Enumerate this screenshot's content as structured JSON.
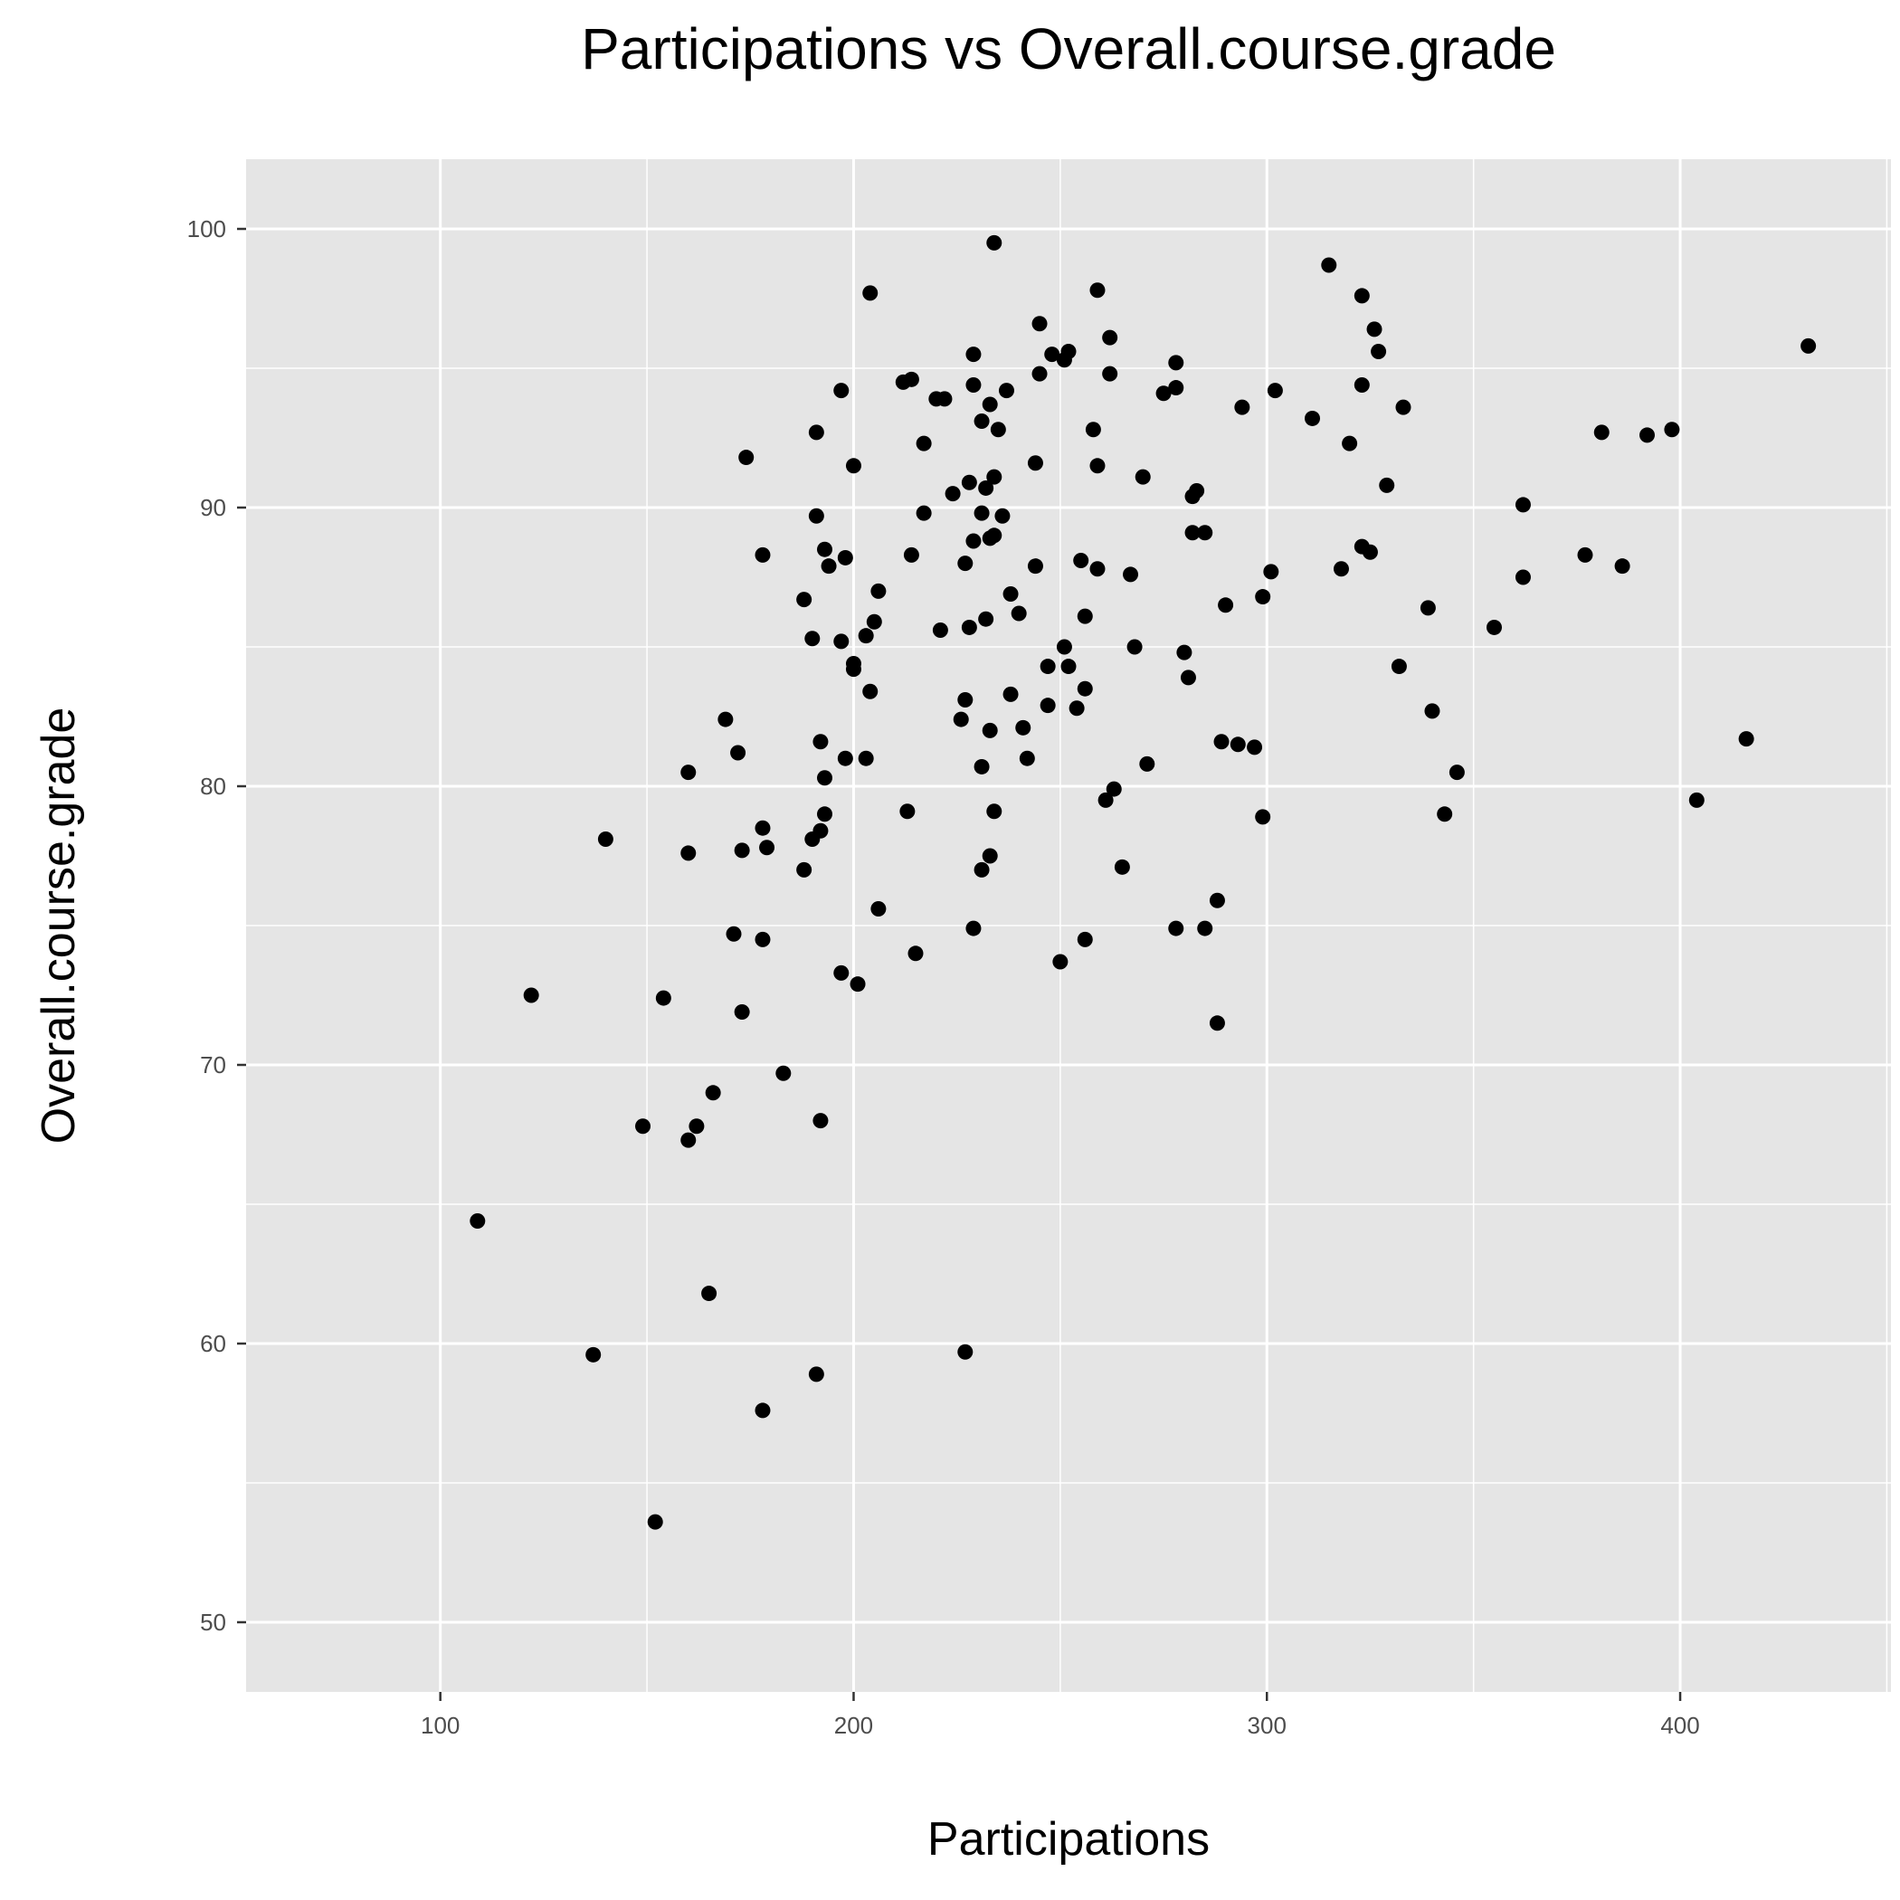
{
  "chart_data": {
    "type": "scatter",
    "title": "Participations vs Overall.course.grade",
    "xlabel": "Participations",
    "ylabel": "Overall.course.grade",
    "xlim": [
      53,
      451
    ],
    "ylim": [
      47.5,
      102.5
    ],
    "x_ticks": [
      100,
      200,
      300,
      400
    ],
    "y_ticks": [
      50,
      60,
      70,
      80,
      90,
      100
    ],
    "x_tick_labels": [
      "100",
      "200",
      "300",
      "400"
    ],
    "y_tick_labels": [
      "50",
      "60",
      "70",
      "80",
      "90",
      "100"
    ],
    "grid": true,
    "colors": {
      "panel": "#e5e5e5",
      "grid": "#ffffff",
      "point": "#000000",
      "tick_mark": "#333333"
    },
    "points": [
      [
        109,
        64.4
      ],
      [
        122,
        72.5
      ],
      [
        137,
        59.6
      ],
      [
        140,
        78.1
      ],
      [
        149,
        67.8
      ],
      [
        152,
        53.6
      ],
      [
        154,
        72.4
      ],
      [
        160,
        67.3
      ],
      [
        160,
        77.6
      ],
      [
        160,
        80.5
      ],
      [
        162,
        67.8
      ],
      [
        165,
        61.8
      ],
      [
        166,
        69.0
      ],
      [
        169,
        82.4
      ],
      [
        171,
        74.7
      ],
      [
        172,
        81.2
      ],
      [
        173,
        71.9
      ],
      [
        173,
        77.7
      ],
      [
        174,
        91.8
      ],
      [
        178,
        57.6
      ],
      [
        178,
        74.5
      ],
      [
        178,
        78.5
      ],
      [
        178,
        88.3
      ],
      [
        179,
        77.8
      ],
      [
        183,
        69.7
      ],
      [
        188,
        77.0
      ],
      [
        188,
        86.7
      ],
      [
        190,
        78.1
      ],
      [
        190,
        85.3
      ],
      [
        191,
        58.9
      ],
      [
        191,
        89.7
      ],
      [
        191,
        92.7
      ],
      [
        192,
        68.0
      ],
      [
        192,
        78.4
      ],
      [
        192,
        81.6
      ],
      [
        193,
        79.0
      ],
      [
        193,
        80.3
      ],
      [
        193,
        88.5
      ],
      [
        194,
        87.9
      ],
      [
        197,
        73.3
      ],
      [
        197,
        85.2
      ],
      [
        197,
        94.2
      ],
      [
        198,
        81.0
      ],
      [
        198,
        88.2
      ],
      [
        200,
        84.2
      ],
      [
        200,
        84.4
      ],
      [
        200,
        91.5
      ],
      [
        201,
        72.9
      ],
      [
        203,
        81.0
      ],
      [
        203,
        85.4
      ],
      [
        204,
        83.4
      ],
      [
        204,
        97.7
      ],
      [
        205,
        85.9
      ],
      [
        206,
        75.6
      ],
      [
        206,
        87.0
      ],
      [
        212,
        94.5
      ],
      [
        213,
        79.1
      ],
      [
        214,
        88.3
      ],
      [
        214,
        94.6
      ],
      [
        215,
        74.0
      ],
      [
        217,
        89.8
      ],
      [
        217,
        92.3
      ],
      [
        220,
        93.9
      ],
      [
        221,
        85.6
      ],
      [
        222,
        93.9
      ],
      [
        224,
        90.5
      ],
      [
        226,
        82.4
      ],
      [
        227,
        59.7
      ],
      [
        227,
        83.1
      ],
      [
        227,
        88.0
      ],
      [
        228,
        85.7
      ],
      [
        228,
        90.9
      ],
      [
        229,
        74.9
      ],
      [
        229,
        88.8
      ],
      [
        229,
        94.4
      ],
      [
        229,
        95.5
      ],
      [
        231,
        77.0
      ],
      [
        231,
        80.7
      ],
      [
        231,
        89.8
      ],
      [
        231,
        93.1
      ],
      [
        232,
        86.0
      ],
      [
        232,
        90.7
      ],
      [
        233,
        77.5
      ],
      [
        233,
        82.0
      ],
      [
        233,
        88.9
      ],
      [
        233,
        93.7
      ],
      [
        234,
        79.1
      ],
      [
        234,
        89.0
      ],
      [
        234,
        91.1
      ],
      [
        234,
        99.5
      ],
      [
        235,
        92.8
      ],
      [
        236,
        89.7
      ],
      [
        237,
        94.2
      ],
      [
        238,
        83.3
      ],
      [
        238,
        86.9
      ],
      [
        240,
        86.2
      ],
      [
        241,
        82.1
      ],
      [
        242,
        81.0
      ],
      [
        244,
        87.9
      ],
      [
        244,
        91.6
      ],
      [
        245,
        94.8
      ],
      [
        245,
        96.6
      ],
      [
        247,
        82.9
      ],
      [
        247,
        84.3
      ],
      [
        248,
        95.5
      ],
      [
        250,
        73.7
      ],
      [
        251,
        85.0
      ],
      [
        251,
        95.3
      ],
      [
        252,
        84.3
      ],
      [
        252,
        95.6
      ],
      [
        254,
        82.8
      ],
      [
        255,
        88.1
      ],
      [
        256,
        74.5
      ],
      [
        256,
        83.5
      ],
      [
        256,
        86.1
      ],
      [
        258,
        92.8
      ],
      [
        259,
        87.8
      ],
      [
        259,
        91.5
      ],
      [
        259,
        97.8
      ],
      [
        261,
        79.5
      ],
      [
        262,
        94.8
      ],
      [
        262,
        96.1
      ],
      [
        263,
        79.9
      ],
      [
        265,
        77.1
      ],
      [
        267,
        87.6
      ],
      [
        268,
        85.0
      ],
      [
        270,
        91.1
      ],
      [
        271,
        80.8
      ],
      [
        275,
        94.1
      ],
      [
        278,
        74.9
      ],
      [
        278,
        94.3
      ],
      [
        278,
        95.2
      ],
      [
        280,
        84.8
      ],
      [
        281,
        83.9
      ],
      [
        282,
        89.1
      ],
      [
        282,
        90.4
      ],
      [
        283,
        90.6
      ],
      [
        285,
        74.9
      ],
      [
        285,
        89.1
      ],
      [
        288,
        71.5
      ],
      [
        288,
        75.9
      ],
      [
        289,
        81.6
      ],
      [
        290,
        86.5
      ],
      [
        293,
        81.5
      ],
      [
        294,
        93.6
      ],
      [
        297,
        81.4
      ],
      [
        299,
        78.9
      ],
      [
        299,
        86.8
      ],
      [
        301,
        87.7
      ],
      [
        302,
        94.2
      ],
      [
        311,
        93.2
      ],
      [
        315,
        98.7
      ],
      [
        318,
        87.8
      ],
      [
        320,
        92.3
      ],
      [
        323,
        88.6
      ],
      [
        323,
        94.4
      ],
      [
        323,
        97.6
      ],
      [
        325,
        88.4
      ],
      [
        326,
        96.4
      ],
      [
        327,
        95.6
      ],
      [
        329,
        90.8
      ],
      [
        332,
        84.3
      ],
      [
        333,
        93.6
      ],
      [
        339,
        86.4
      ],
      [
        340,
        82.7
      ],
      [
        343,
        79.0
      ],
      [
        346,
        80.5
      ],
      [
        355,
        85.7
      ],
      [
        362,
        87.5
      ],
      [
        362,
        90.1
      ],
      [
        377,
        88.3
      ],
      [
        381,
        92.7
      ],
      [
        386,
        87.9
      ],
      [
        392,
        92.6
      ],
      [
        398,
        92.8
      ],
      [
        404,
        79.5
      ],
      [
        416,
        81.7
      ],
      [
        431,
        95.8
      ]
    ]
  }
}
